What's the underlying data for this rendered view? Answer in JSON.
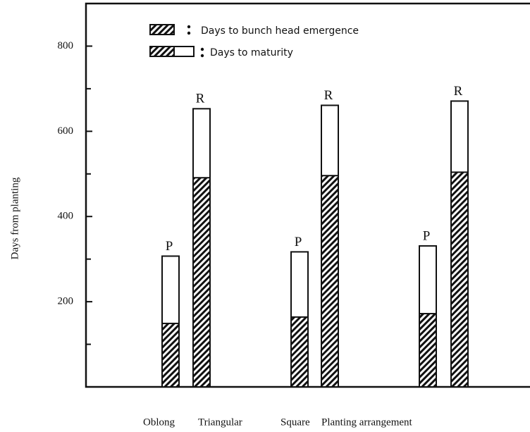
{
  "chart_data": {
    "type": "bar",
    "ylabel": "Days from planting",
    "xlabel": "Planting arrangement",
    "group_labels": [
      "Oblong",
      "Triangular",
      "Square"
    ],
    "categories": [
      "P",
      "R",
      "P",
      "R",
      "P",
      "R"
    ],
    "series": [
      {
        "name": "Days to maturity",
        "color": "#ffffff",
        "values": [
          307,
          653,
          317,
          661,
          331,
          671
        ]
      },
      {
        "name": "Days to bunch head emergence",
        "color": "#111111",
        "values": [
          149,
          491,
          164,
          496,
          172,
          504
        ]
      }
    ],
    "ylim": [
      0,
      900
    ],
    "yticks": [
      200,
      400,
      600,
      800
    ],
    "yminorticks": [
      100,
      300,
      500,
      700
    ]
  }
}
